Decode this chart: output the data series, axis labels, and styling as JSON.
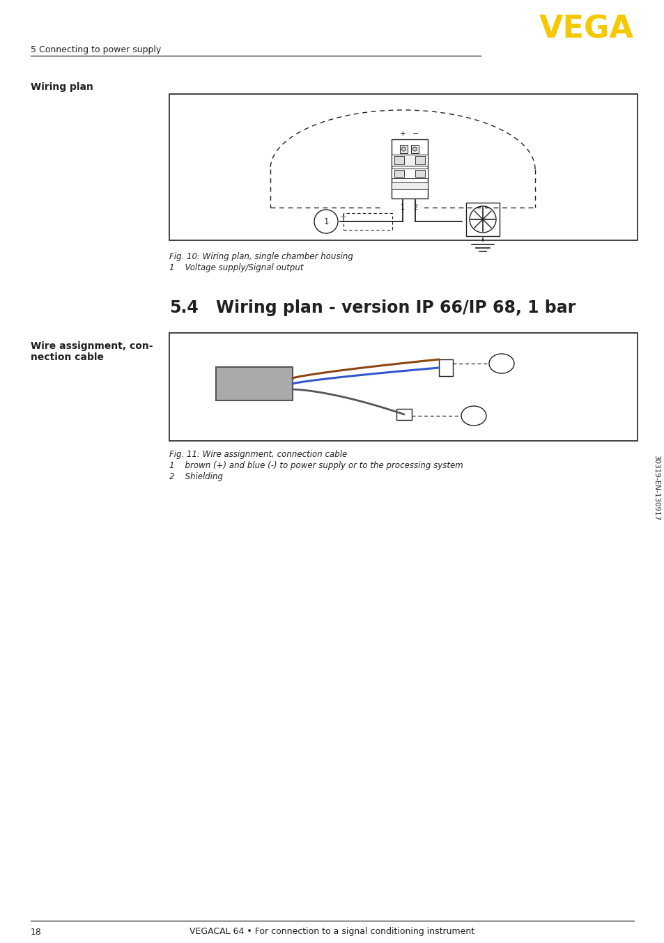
{
  "page_bg": "#ffffff",
  "header_text": "5 Connecting to power supply",
  "vega_text": "VEGA",
  "vega_color": "#F5C800",
  "section_label": "Wiring plan",
  "fig1_caption": "Fig. 10: Wiring plan, single chamber housing",
  "fig1_item1": "1    Voltage supply/Signal output",
  "section2_number": "5.4",
  "section2_title": "Wiring plan - version IP 66/IP 68, 1 bar",
  "wire_label_line1": "Wire assignment, con-",
  "wire_label_line2": "nection cable",
  "fig2_caption": "Fig. 11: Wire assignment, connection cable",
  "fig2_item1": "1    brown (+) and blue (-) to power supply or to the processing system",
  "fig2_item2": "2    Shielding",
  "footer_page": "18",
  "footer_text": "VEGACAL 64 • For connection to a signal conditioning instrument",
  "side_text": "30319-EN-130917",
  "text_color": "#231f20",
  "line_color": "#231f20"
}
